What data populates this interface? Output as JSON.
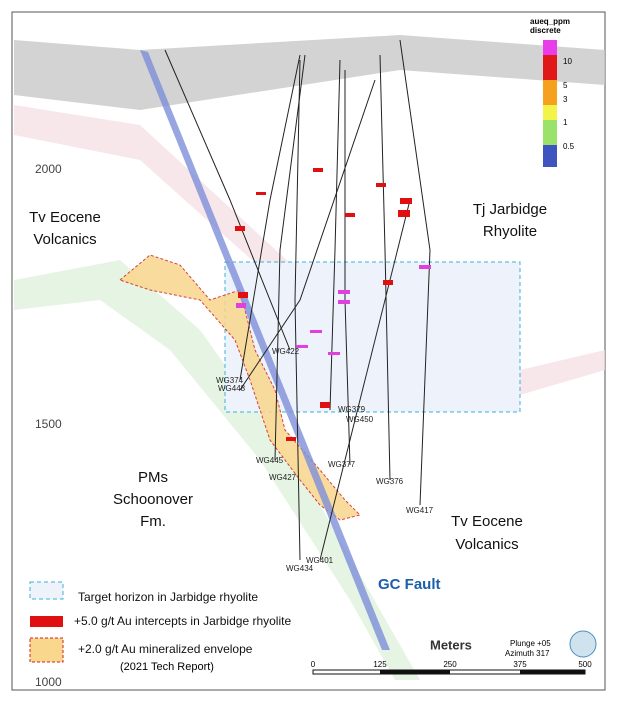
{
  "elevation_labels": [
    2000,
    1500,
    1000
  ],
  "color_scale": {
    "title": "aueq_ppm",
    "subtitle": "discrete",
    "labels": [
      "10",
      "5",
      "3",
      "1",
      "0.5"
    ]
  },
  "units": [
    {
      "lines": [
        "Tv Eocene",
        "Volcanics"
      ]
    },
    {
      "lines": [
        "Tj Jarbidge",
        "Rhyolite"
      ]
    },
    {
      "lines": [
        "PMs",
        "Schoonover",
        "Fm."
      ]
    },
    {
      "lines": [
        "Tv Eocene",
        "Volcanics"
      ]
    }
  ],
  "fault": "GC Fault",
  "drill_holes": [
    "WG422",
    "WG374",
    "WG448",
    "WG379",
    "WG450",
    "WG445",
    "WG377",
    "WG427",
    "WG376",
    "WG417",
    "WG401",
    "WG434"
  ],
  "legend": [
    {
      "label": "Target horizon in Jarbidge rhyolite"
    },
    {
      "label": "+5.0 g/t Au intercepts in Jarbidge rhyolite"
    },
    {
      "label": "+2.0 g/t Au mineralized envelope",
      "note": "(2021 Tech Report)"
    }
  ],
  "scale_bar": {
    "title": "Meters",
    "ticks": [
      0,
      125,
      250,
      375,
      500
    ]
  },
  "orientation": [
    "Plunge +05",
    "Azimuth 317"
  ]
}
